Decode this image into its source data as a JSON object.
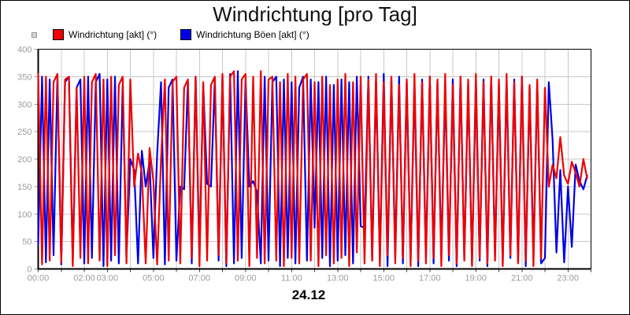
{
  "title": "Windrichtung [pro Tag]",
  "chart_data": {
    "type": "line",
    "title": "Windrichtung [pro Tag]",
    "xlabel": "24.12",
    "ylabel": "",
    "ylim": [
      0,
      400
    ],
    "xlim_hours": [
      0,
      24
    ],
    "grid": {
      "on": true,
      "x_step_hours": 1,
      "y_step": 50
    },
    "legend_position": "top-left",
    "sample_step_hours": 0.16667,
    "y_ticks": [
      0,
      50,
      100,
      150,
      200,
      250,
      300,
      350,
      400
    ],
    "x_ticks": [
      {
        "hour": 0,
        "label": "00:00"
      },
      {
        "hour": 2,
        "label": "02:00"
      },
      {
        "hour": 3,
        "label": "03:00"
      },
      {
        "hour": 5,
        "label": "05:00"
      },
      {
        "hour": 7,
        "label": "07:00"
      },
      {
        "hour": 9,
        "label": "09:00"
      },
      {
        "hour": 11,
        "label": "11:00"
      },
      {
        "hour": 13,
        "label": "13:00"
      },
      {
        "hour": 15,
        "label": "15:00"
      },
      {
        "hour": 17,
        "label": "17:00"
      },
      {
        "hour": 19,
        "label": "19:00"
      },
      {
        "hour": 21,
        "label": "21:00"
      },
      {
        "hour": 23,
        "label": "23:00"
      }
    ],
    "series": [
      {
        "name": "Windrichtung [akt] (°)",
        "color": "#ee0000",
        "values": [
          355,
          8,
          350,
          15,
          340,
          355,
          12,
          345,
          350,
          5,
          330,
          20,
          350,
          10,
          340,
          355,
          15,
          345,
          5,
          350,
          25,
          335,
          350,
          10,
          345,
          150,
          210,
          175,
          10,
          220,
          160,
          8,
          200,
          345,
          15,
          340,
          350,
          10,
          330,
          345,
          20,
          350,
          5,
          340,
          15,
          335,
          350,
          25,
          355,
          10,
          350,
          360,
          15,
          345,
          355,
          5,
          350,
          20,
          360,
          10,
          345,
          350,
          15,
          340,
          5,
          355,
          20,
          350,
          10,
          345,
          355,
          15,
          340,
          5,
          350,
          25,
          335,
          10,
          345,
          20,
          355,
          5,
          340,
          30,
          350,
          10,
          345,
          15,
          355,
          5,
          340,
          25,
          350,
          10,
          335,
          20,
          345,
          5,
          355,
          15,
          340,
          10,
          350,
          20,
          345,
          5,
          355,
          25,
          335,
          10,
          350,
          15,
          345,
          5,
          355,
          20,
          340,
          10,
          350,
          15,
          345,
          5,
          355,
          25,
          340,
          10,
          350,
          15,
          335,
          5,
          345,
          20,
          330,
          150,
          190,
          165,
          240,
          170,
          155,
          195,
          175,
          150,
          200,
          165
        ]
      },
      {
        "name": "Windrichtung Böen [akt] (°)",
        "color": "#0000e6",
        "values": [
          45,
          350,
          12,
          345,
          25,
          350,
          8,
          340,
          350,
          15,
          330,
          345,
          10,
          350,
          20,
          340,
          355,
          5,
          345,
          15,
          350,
          10,
          335,
          25,
          200,
          180,
          10,
          215,
          150,
          195,
          20,
          210,
          340,
          8,
          330,
          345,
          15,
          150,
          145,
          340,
          10,
          350,
          25,
          335,
          155,
          150,
          345,
          15,
          350,
          5,
          355,
          10,
          360,
          20,
          345,
          150,
          160,
          140,
          10,
          350,
          15,
          340,
          350,
          5,
          345,
          20,
          340,
          10,
          330,
          350,
          15,
          345,
          75,
          340,
          20,
          350,
          5,
          335,
          15,
          345,
          25,
          340,
          10,
          350,
          78,
          75,
          350,
          15,
          340,
          20,
          355,
          5,
          345,
          25,
          350,
          10,
          340,
          15,
          335,
          5,
          345,
          20,
          350,
          10,
          340,
          25,
          330,
          15,
          345,
          5,
          350,
          20,
          335,
          10,
          340,
          15,
          345,
          5,
          350,
          25,
          335,
          10,
          340,
          20,
          345,
          15,
          350,
          5,
          330,
          25,
          340,
          10,
          20,
          340,
          235,
          30,
          180,
          12,
          150,
          40,
          190,
          160,
          145,
          170
        ]
      }
    ],
    "colors": {
      "plot_border": "#000000",
      "grid": "#c8c8c8",
      "tick_label": "#9c9c9c",
      "x_tick_mark": "#444444",
      "y_tick_mark": "#9c9c9c"
    }
  }
}
